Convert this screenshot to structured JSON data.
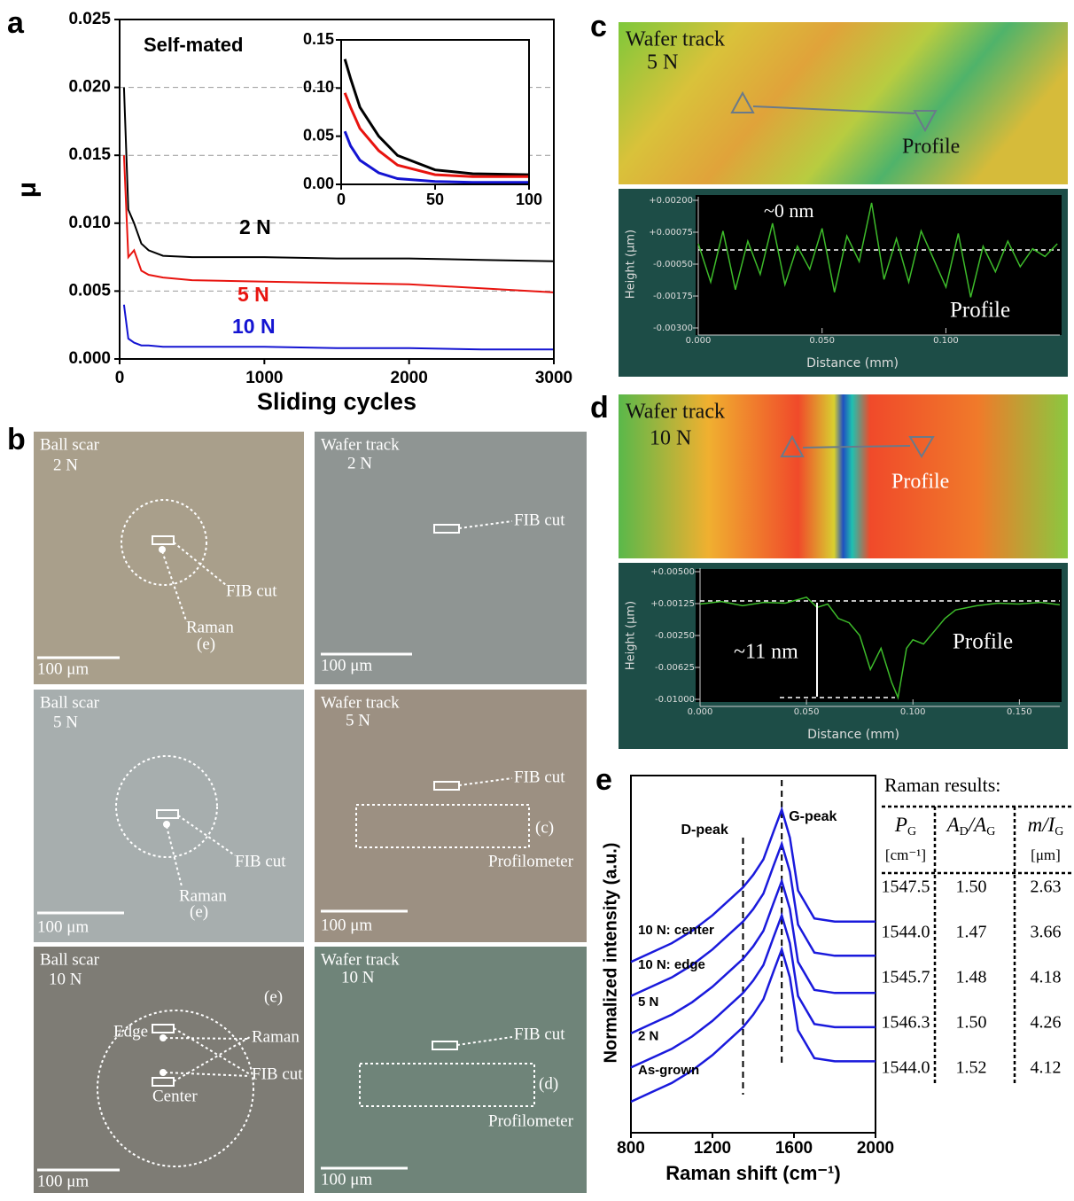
{
  "panel_a": {
    "label": "a",
    "type": "line",
    "title": "Self-mated",
    "x_label": "Sliding cycles",
    "y_label": "μ",
    "xlim": [
      0,
      3000
    ],
    "xticks": [
      0,
      1000,
      2000,
      3000
    ],
    "ylim": [
      0,
      0.025
    ],
    "yticks": [
      {
        "value": 0,
        "label": "0.000"
      },
      0.005,
      {
        "value": 0.01,
        "label": "0.010"
      },
      0.015,
      {
        "value": 0.02,
        "label": "0.020"
      },
      0.025
    ],
    "grid": true,
    "x": [
      30,
      60,
      100,
      150,
      200,
      300,
      500,
      1000,
      1500,
      2000,
      2500,
      3000
    ],
    "series": [
      {
        "name": "2 N",
        "color": "#000000",
        "values": [
          0.02,
          0.011,
          0.01,
          0.0085,
          0.008,
          0.0076,
          0.0075,
          0.0075,
          0.0074,
          0.0074,
          0.0073,
          0.0072
        ]
      },
      {
        "name": "5 N",
        "color": "#e8140f",
        "values": [
          0.015,
          0.0075,
          0.008,
          0.0065,
          0.0062,
          0.006,
          0.0058,
          0.0057,
          0.0056,
          0.0055,
          0.0052,
          0.0049
        ]
      },
      {
        "name": "10 N",
        "color": "#1414d2",
        "values": [
          0.004,
          0.0015,
          0.0012,
          0.001,
          0.001,
          0.0009,
          0.0009,
          0.0009,
          0.0008,
          0.0008,
          0.0007,
          0.0007
        ]
      }
    ],
    "inset": {
      "xlim": [
        0,
        100
      ],
      "xticks": [
        0,
        50,
        100
      ],
      "ylim": [
        0,
        0.15
      ],
      "yticks": [
        {
          "value": 0,
          "label": "0.00"
        },
        0.05,
        {
          "value": 0.1,
          "label": "0.10"
        },
        0.15
      ],
      "x": [
        2,
        5,
        10,
        20,
        30,
        50,
        70,
        100
      ],
      "series": [
        {
          "color": "#000000",
          "values": [
            0.13,
            0.11,
            0.08,
            0.05,
            0.03,
            0.015,
            0.011,
            0.01
          ]
        },
        {
          "color": "#e8140f",
          "values": [
            0.095,
            0.08,
            0.058,
            0.035,
            0.02,
            0.01,
            0.008,
            0.008
          ]
        },
        {
          "color": "#1414d2",
          "values": [
            0.055,
            0.04,
            0.025,
            0.012,
            0.006,
            0.003,
            0.002,
            0.002
          ]
        }
      ]
    }
  },
  "panel_b": {
    "label": "b",
    "tiles": [
      {
        "title": "Ball scar",
        "load": "2 N",
        "scale_bar": "100 μm",
        "labels": [
          "FIB cut",
          "Raman",
          "(e)"
        ]
      },
      {
        "title": "Wafer track",
        "load": "2 N",
        "scale_bar": "100 μm",
        "labels": [
          "FIB cut"
        ]
      },
      {
        "title": "Ball scar",
        "load": "5 N",
        "scale_bar": "100 μm",
        "labels": [
          "FIB cut",
          "Raman",
          "(e)"
        ]
      },
      {
        "title": "Wafer track",
        "load": "5 N",
        "scale_bar": "100 μm",
        "labels": [
          "FIB cut",
          "(c)",
          "Profilometer"
        ]
      },
      {
        "title": "Ball scar",
        "load": "10 N",
        "scale_bar": "100 μm",
        "labels": [
          "Edge",
          "Center",
          "(e)",
          "Raman",
          "FIB cut"
        ]
      },
      {
        "title": "Wafer track",
        "load": "10 N",
        "scale_bar": "100 μm",
        "labels": [
          "FIB cut",
          "(d)",
          "Profilometer"
        ]
      }
    ]
  },
  "panel_c": {
    "label": "c",
    "image_title": "Wafer track",
    "image_load": "5 N",
    "image_label": "Profile",
    "profile": {
      "type": "line",
      "x_label": "Distance (mm)",
      "y_label": "Height (µm)",
      "annotation": "~0 nm",
      "label": "Profile",
      "color": "#3dbb2a",
      "xlim": [
        0,
        0.146
      ],
      "xticks": [
        {
          "value": 0,
          "label": "0.000"
        },
        {
          "value": 0.05,
          "label": "0.050"
        },
        {
          "value": 0.1,
          "label": "0.100"
        }
      ],
      "ylim": [
        -0.003,
        0.002
      ],
      "yticks": [
        {
          "value": 0.002,
          "label": "+0.00200"
        },
        {
          "value": 0.00075,
          "label": "+0.00075"
        },
        {
          "value": -0.0005,
          "label": "-0.00050"
        },
        {
          "value": -0.00175,
          "label": "-0.00175"
        },
        {
          "value": -0.003,
          "label": "-0.00300"
        }
      ],
      "x": [
        0,
        0.005,
        0.01,
        0.015,
        0.02,
        0.025,
        0.03,
        0.035,
        0.04,
        0.045,
        0.05,
        0.055,
        0.06,
        0.065,
        0.07,
        0.075,
        0.08,
        0.085,
        0.09,
        0.095,
        0.1,
        0.105,
        0.11,
        0.115,
        0.12,
        0.125,
        0.13,
        0.135,
        0.14,
        0.145
      ],
      "values": [
        0.0003,
        -0.0012,
        0.0008,
        -0.0015,
        0.0004,
        -0.0009,
        0.0011,
        -0.0013,
        0.0002,
        -0.0007,
        0.0009,
        -0.0016,
        0.0006,
        -0.0004,
        0.0019,
        -0.0011,
        0.0005,
        -0.0012,
        0.0008,
        -0.0003,
        -0.0014,
        0.0007,
        -0.0018,
        0.0002,
        -0.0008,
        0.0004,
        -0.0006,
        0.0001,
        -0.0002,
        0.0003
      ]
    }
  },
  "panel_d": {
    "label": "d",
    "image_title": "Wafer track",
    "image_load": "10 N",
    "image_label": "Profile",
    "profile": {
      "type": "line",
      "x_label": "Distance (mm)",
      "y_label": "Height (µm)",
      "annotation": "~11 nm",
      "label": "Profile",
      "color": "#3dbb2a",
      "xlim": [
        0,
        0.169
      ],
      "xticks": [
        {
          "value": 0,
          "label": "0.000"
        },
        {
          "value": 0.05,
          "label": "0.050"
        },
        {
          "value": 0.1,
          "label": "0.100"
        },
        {
          "value": 0.15,
          "label": "0.150"
        }
      ],
      "ylim": [
        -0.01,
        0.005
      ],
      "yticks": [
        {
          "value": 0.005,
          "label": "+0.00500"
        },
        {
          "value": 0.00125,
          "label": "+0.00125"
        },
        {
          "value": -0.0025,
          "label": "-0.00250"
        },
        {
          "value": -0.00625,
          "label": "-0.00625"
        },
        {
          "value": -0.01,
          "label": "-0.01000"
        }
      ],
      "x": [
        0,
        0.01,
        0.02,
        0.03,
        0.04,
        0.05,
        0.055,
        0.06,
        0.065,
        0.07,
        0.075,
        0.08,
        0.085,
        0.09,
        0.093,
        0.097,
        0.1,
        0.105,
        0.11,
        0.115,
        0.12,
        0.13,
        0.14,
        0.15,
        0.16,
        0.169
      ],
      "values": [
        0.0012,
        0.0015,
        0.001,
        0.0014,
        0.0013,
        0.002,
        0.0008,
        0.0012,
        -0.0005,
        -0.001,
        -0.0025,
        -0.0065,
        -0.004,
        -0.008,
        -0.0098,
        -0.004,
        -0.003,
        -0.0035,
        -0.002,
        -0.0005,
        0.0005,
        0.001,
        0.0013,
        0.0012,
        0.0014,
        0.0011
      ]
    }
  },
  "panel_e": {
    "label": "e",
    "type": "line",
    "x_label": "Raman shift (cm⁻¹)",
    "y_label": "Normalized intensity (a.u.)",
    "xlim": [
      800,
      2000
    ],
    "xticks": [
      800,
      1200,
      1600,
      2000
    ],
    "ylim": [
      0,
      11.5
    ],
    "color": "#1a1adc",
    "peaks": [
      {
        "label": "D-peak",
        "x": 1350
      },
      {
        "label": "G-peak",
        "x": 1540
      }
    ],
    "x": [
      800,
      900,
      1000,
      1100,
      1200,
      1300,
      1350,
      1400,
      1450,
      1500,
      1540,
      1580,
      1620,
      1700,
      1800,
      1900,
      2000
    ],
    "series": [
      {
        "name": "10 N: center",
        "values": [
          5.5,
          5.8,
          6.1,
          6.5,
          7.0,
          7.6,
          7.9,
          8.3,
          8.8,
          9.7,
          10.4,
          9.5,
          7.8,
          6.9,
          6.8,
          6.8,
          6.8
        ]
      },
      {
        "name": "10 N: edge",
        "values": [
          4.4,
          4.7,
          5.0,
          5.4,
          5.9,
          6.5,
          6.8,
          7.2,
          7.7,
          8.6,
          9.3,
          8.4,
          6.7,
          5.8,
          5.7,
          5.7,
          5.7
        ]
      },
      {
        "name": "5 N",
        "values": [
          3.2,
          3.5,
          3.8,
          4.2,
          4.7,
          5.3,
          5.6,
          6.0,
          6.5,
          7.4,
          8.1,
          7.2,
          5.5,
          4.6,
          4.5,
          4.5,
          4.5
        ]
      },
      {
        "name": "2 N",
        "values": [
          2.1,
          2.4,
          2.7,
          3.1,
          3.6,
          4.2,
          4.5,
          4.9,
          5.4,
          6.3,
          7.0,
          6.1,
          4.4,
          3.5,
          3.4,
          3.4,
          3.4
        ]
      },
      {
        "name": "As-grown",
        "values": [
          1.0,
          1.3,
          1.6,
          2.0,
          2.5,
          3.1,
          3.4,
          3.8,
          4.3,
          5.2,
          5.9,
          5.0,
          3.3,
          2.4,
          2.3,
          2.3,
          2.3
        ]
      }
    ],
    "table": {
      "title": "Raman results:",
      "headers": [
        {
          "parts": [
            "P",
            "G"
          ],
          "unit": "[cm⁻¹]"
        },
        {
          "parts": [
            "A",
            "D",
            "/A",
            "G"
          ]
        },
        {
          "parts": [
            "m/I",
            "G"
          ],
          "unit": "[μm]"
        }
      ],
      "rows": [
        [
          "1547.5",
          "1.50",
          "2.63"
        ],
        [
          "1544.0",
          "1.47",
          "3.66"
        ],
        [
          "1545.7",
          "1.48",
          "4.18"
        ],
        [
          "1546.3",
          "1.50",
          "4.26"
        ],
        [
          "1544.0",
          "1.52",
          "4.12"
        ]
      ]
    }
  }
}
